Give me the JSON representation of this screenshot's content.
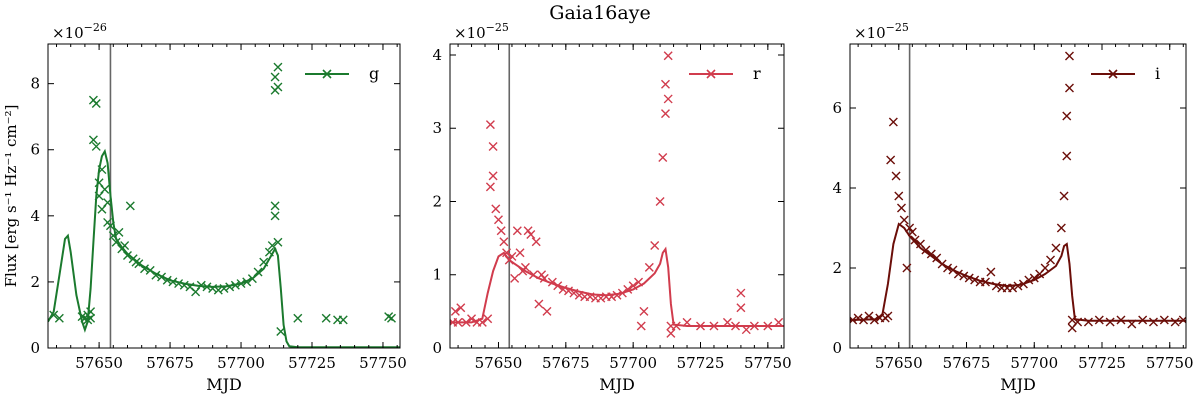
{
  "figure": {
    "title": "Gaia16aye"
  },
  "chart_data": [
    {
      "type": "scatter",
      "band": "g",
      "color": "#1b7a2e",
      "xlabel": "MJD",
      "ylabel": "Flux [erg s⁻¹ Hz⁻¹ cm⁻²]",
      "scale_text": "×10",
      "scale_exp": "−26",
      "xlim": [
        57632,
        57756
      ],
      "ylim": [
        0,
        9.2
      ],
      "xticks": [
        57650,
        57675,
        57700,
        57725,
        57750
      ],
      "yticks": [
        0,
        2,
        4,
        6,
        8
      ],
      "vline": 57654,
      "legend": "g",
      "legend_position": "top-right",
      "points": [
        [
          57634,
          1.0
        ],
        [
          57636,
          0.9
        ],
        [
          57644,
          0.95
        ],
        [
          57645,
          0.9
        ],
        [
          57646,
          1.0
        ],
        [
          57646,
          0.85
        ],
        [
          57647,
          1.1
        ],
        [
          57647,
          0.9
        ],
        [
          57648,
          6.3
        ],
        [
          57648,
          7.5
        ],
        [
          57649,
          7.4
        ],
        [
          57649,
          6.1
        ],
        [
          57650,
          5.0
        ],
        [
          57650,
          4.6
        ],
        [
          57651,
          5.4
        ],
        [
          57651,
          4.2
        ],
        [
          57652,
          4.8
        ],
        [
          57653,
          4.4
        ],
        [
          57653,
          3.8
        ],
        [
          57654,
          3.7
        ],
        [
          57655,
          3.4
        ],
        [
          57656,
          3.2
        ],
        [
          57657,
          3.5
        ],
        [
          57658,
          3.0
        ],
        [
          57659,
          3.1
        ],
        [
          57660,
          2.8
        ],
        [
          57661,
          4.3
        ],
        [
          57662,
          2.7
        ],
        [
          57663,
          2.6
        ],
        [
          57664,
          2.55
        ],
        [
          57666,
          2.4
        ],
        [
          57668,
          2.35
        ],
        [
          57670,
          2.2
        ],
        [
          57672,
          2.15
        ],
        [
          57674,
          2.05
        ],
        [
          57676,
          2.0
        ],
        [
          57678,
          1.95
        ],
        [
          57680,
          1.9
        ],
        [
          57682,
          1.85
        ],
        [
          57684,
          1.7
        ],
        [
          57686,
          1.9
        ],
        [
          57688,
          1.85
        ],
        [
          57690,
          1.8
        ],
        [
          57692,
          1.75
        ],
        [
          57694,
          1.8
        ],
        [
          57696,
          1.85
        ],
        [
          57698,
          1.9
        ],
        [
          57700,
          1.95
        ],
        [
          57702,
          2.0
        ],
        [
          57704,
          2.1
        ],
        [
          57706,
          2.3
        ],
        [
          57708,
          2.6
        ],
        [
          57710,
          2.9
        ],
        [
          57711,
          3.1
        ],
        [
          57712,
          4.0
        ],
        [
          57712,
          4.3
        ],
        [
          57712,
          7.8
        ],
        [
          57712,
          8.2
        ],
        [
          57713,
          7.9
        ],
        [
          57713,
          8.5
        ],
        [
          57713,
          3.2
        ],
        [
          57714,
          0.5
        ],
        [
          57720,
          0.9
        ],
        [
          57730,
          0.9
        ],
        [
          57734,
          0.85
        ],
        [
          57736,
          0.85
        ],
        [
          57752,
          0.95
        ],
        [
          57753,
          0.9
        ]
      ],
      "model_curve": [
        [
          57632,
          0.8
        ],
        [
          57634,
          1.1
        ],
        [
          57636,
          2.2
        ],
        [
          57638,
          3.3
        ],
        [
          57639,
          3.4
        ],
        [
          57640,
          2.9
        ],
        [
          57642,
          1.6
        ],
        [
          57644,
          0.8
        ],
        [
          57645,
          0.55
        ],
        [
          57646,
          0.8
        ],
        [
          57647,
          1.8
        ],
        [
          57648,
          3.2
        ],
        [
          57649,
          4.6
        ],
        [
          57650,
          5.4
        ],
        [
          57651,
          5.8
        ],
        [
          57652,
          5.95
        ],
        [
          57653,
          5.6
        ],
        [
          57654,
          4.6
        ],
        [
          57655,
          3.8
        ],
        [
          57656,
          3.3
        ],
        [
          57658,
          3.05
        ],
        [
          57660,
          2.85
        ],
        [
          57665,
          2.5
        ],
        [
          57670,
          2.25
        ],
        [
          57675,
          2.05
        ],
        [
          57680,
          1.95
        ],
        [
          57685,
          1.88
        ],
        [
          57690,
          1.85
        ],
        [
          57695,
          1.87
        ],
        [
          57700,
          1.95
        ],
        [
          57704,
          2.1
        ],
        [
          57708,
          2.4
        ],
        [
          57710,
          2.7
        ],
        [
          57712,
          3.0
        ],
        [
          57713,
          2.8
        ],
        [
          57714,
          1.8
        ],
        [
          57715,
          0.7
        ],
        [
          57716,
          0.2
        ],
        [
          57717,
          0.05
        ],
        [
          57720,
          0.02
        ],
        [
          57740,
          0.02
        ],
        [
          57756,
          0.02
        ]
      ]
    },
    {
      "type": "scatter",
      "band": "r",
      "color": "#d13c4d",
      "xlabel": "MJD",
      "ylabel": "",
      "scale_text": "×10",
      "scale_exp": "−25",
      "xlim": [
        57632,
        57756
      ],
      "ylim": [
        0,
        4.15
      ],
      "xticks": [
        57650,
        57675,
        57700,
        57725,
        57750
      ],
      "yticks": [
        0,
        1,
        2,
        3,
        4
      ],
      "vline": 57654,
      "legend": "r",
      "legend_position": "top-right",
      "points": [
        [
          57633,
          0.35
        ],
        [
          57634,
          0.5
        ],
        [
          57635,
          0.35
        ],
        [
          57636,
          0.55
        ],
        [
          57638,
          0.35
        ],
        [
          57640,
          0.4
        ],
        [
          57642,
          0.35
        ],
        [
          57644,
          0.35
        ],
        [
          57646,
          0.4
        ],
        [
          57647,
          2.2
        ],
        [
          57647,
          3.05
        ],
        [
          57648,
          2.75
        ],
        [
          57648,
          2.35
        ],
        [
          57649,
          1.9
        ],
        [
          57650,
          1.75
        ],
        [
          57651,
          1.6
        ],
        [
          57652,
          1.45
        ],
        [
          57653,
          1.3
        ],
        [
          57654,
          1.2
        ],
        [
          57655,
          1.25
        ],
        [
          57656,
          0.95
        ],
        [
          57657,
          1.6
        ],
        [
          57658,
          1.3
        ],
        [
          57659,
          1.05
        ],
        [
          57660,
          1.1
        ],
        [
          57661,
          1.6
        ],
        [
          57662,
          1.55
        ],
        [
          57663,
          1.0
        ],
        [
          57664,
          1.45
        ],
        [
          57665,
          0.6
        ],
        [
          57666,
          1.0
        ],
        [
          57667,
          0.95
        ],
        [
          57668,
          0.5
        ],
        [
          57670,
          0.9
        ],
        [
          57672,
          0.85
        ],
        [
          57674,
          0.8
        ],
        [
          57676,
          0.78
        ],
        [
          57678,
          0.75
        ],
        [
          57680,
          0.72
        ],
        [
          57682,
          0.7
        ],
        [
          57684,
          0.7
        ],
        [
          57686,
          0.68
        ],
        [
          57688,
          0.68
        ],
        [
          57690,
          0.7
        ],
        [
          57692,
          0.7
        ],
        [
          57694,
          0.72
        ],
        [
          57696,
          0.75
        ],
        [
          57698,
          0.8
        ],
        [
          57700,
          0.85
        ],
        [
          57702,
          0.9
        ],
        [
          57703,
          0.3
        ],
        [
          57704,
          0.5
        ],
        [
          57706,
          1.1
        ],
        [
          57708,
          1.4
        ],
        [
          57710,
          2.0
        ],
        [
          57711,
          2.6
        ],
        [
          57712,
          3.2
        ],
        [
          57712,
          3.6
        ],
        [
          57713,
          3.99
        ],
        [
          57713,
          3.4
        ],
        [
          57714,
          0.2
        ],
        [
          57714,
          0.3
        ],
        [
          57716,
          0.3
        ],
        [
          57720,
          0.35
        ],
        [
          57725,
          0.3
        ],
        [
          57730,
          0.3
        ],
        [
          57735,
          0.35
        ],
        [
          57738,
          0.3
        ],
        [
          57740,
          0.75
        ],
        [
          57740,
          0.55
        ],
        [
          57742,
          0.25
        ],
        [
          57745,
          0.3
        ],
        [
          57750,
          0.3
        ],
        [
          57754,
          0.35
        ]
      ],
      "model_curve": [
        [
          57632,
          0.35
        ],
        [
          57640,
          0.35
        ],
        [
          57644,
          0.4
        ],
        [
          57646,
          0.75
        ],
        [
          57648,
          1.05
        ],
        [
          57650,
          1.25
        ],
        [
          57652,
          1.3
        ],
        [
          57654,
          1.2
        ],
        [
          57656,
          1.15
        ],
        [
          57660,
          1.05
        ],
        [
          57665,
          0.95
        ],
        [
          57670,
          0.88
        ],
        [
          57675,
          0.82
        ],
        [
          57680,
          0.77
        ],
        [
          57685,
          0.73
        ],
        [
          57690,
          0.72
        ],
        [
          57695,
          0.74
        ],
        [
          57700,
          0.8
        ],
        [
          57704,
          0.88
        ],
        [
          57708,
          1.02
        ],
        [
          57710,
          1.15
        ],
        [
          57711,
          1.3
        ],
        [
          57712,
          1.35
        ],
        [
          57713,
          1.1
        ],
        [
          57714,
          0.6
        ],
        [
          57715,
          0.32
        ],
        [
          57720,
          0.3
        ],
        [
          57756,
          0.3
        ]
      ]
    },
    {
      "type": "scatter",
      "band": "i",
      "color": "#6b0e09",
      "xlabel": "MJD",
      "ylabel": "",
      "scale_text": "×10",
      "scale_exp": "−25",
      "xlim": [
        57632,
        57756
      ],
      "ylim": [
        0,
        7.6
      ],
      "xticks": [
        57650,
        57675,
        57700,
        57725,
        57750
      ],
      "yticks": [
        0,
        2,
        4,
        6
      ],
      "vline": 57654,
      "legend": "i",
      "legend_position": "top-right",
      "points": [
        [
          57633,
          0.7
        ],
        [
          57635,
          0.75
        ],
        [
          57637,
          0.7
        ],
        [
          57639,
          0.8
        ],
        [
          57641,
          0.7
        ],
        [
          57643,
          0.75
        ],
        [
          57645,
          0.75
        ],
        [
          57646,
          0.8
        ],
        [
          57647,
          4.7
        ],
        [
          57648,
          5.65
        ],
        [
          57649,
          4.3
        ],
        [
          57650,
          3.8
        ],
        [
          57651,
          3.5
        ],
        [
          57652,
          3.2
        ],
        [
          57653,
          2.0
        ],
        [
          57654,
          3.0
        ],
        [
          57655,
          2.9
        ],
        [
          57656,
          2.7
        ],
        [
          57658,
          2.6
        ],
        [
          57660,
          2.45
        ],
        [
          57662,
          2.35
        ],
        [
          57664,
          2.25
        ],
        [
          57666,
          2.1
        ],
        [
          57668,
          2.0
        ],
        [
          57670,
          1.95
        ],
        [
          57672,
          1.85
        ],
        [
          57674,
          1.8
        ],
        [
          57676,
          1.75
        ],
        [
          57678,
          1.7
        ],
        [
          57680,
          1.65
        ],
        [
          57682,
          1.65
        ],
        [
          57684,
          1.9
        ],
        [
          57686,
          1.55
        ],
        [
          57688,
          1.5
        ],
        [
          57690,
          1.5
        ],
        [
          57692,
          1.5
        ],
        [
          57694,
          1.55
        ],
        [
          57696,
          1.6
        ],
        [
          57698,
          1.7
        ],
        [
          57700,
          1.75
        ],
        [
          57702,
          1.85
        ],
        [
          57704,
          2.0
        ],
        [
          57706,
          2.2
        ],
        [
          57708,
          2.5
        ],
        [
          57710,
          3.0
        ],
        [
          57711,
          3.8
        ],
        [
          57712,
          4.8
        ],
        [
          57712,
          5.8
        ],
        [
          57713,
          6.5
        ],
        [
          57713,
          7.3
        ],
        [
          57714,
          0.5
        ],
        [
          57714,
          0.7
        ],
        [
          57716,
          0.65
        ],
        [
          57720,
          0.65
        ],
        [
          57724,
          0.7
        ],
        [
          57728,
          0.65
        ],
        [
          57732,
          0.7
        ],
        [
          57736,
          0.6
        ],
        [
          57740,
          0.7
        ],
        [
          57744,
          0.65
        ],
        [
          57748,
          0.7
        ],
        [
          57752,
          0.65
        ],
        [
          57755,
          0.7
        ]
      ],
      "model_curve": [
        [
          57632,
          0.7
        ],
        [
          57642,
          0.72
        ],
        [
          57644,
          0.85
        ],
        [
          57646,
          1.6
        ],
        [
          57648,
          2.6
        ],
        [
          57650,
          3.1
        ],
        [
          57652,
          3.0
        ],
        [
          57654,
          2.8
        ],
        [
          57658,
          2.5
        ],
        [
          57662,
          2.3
        ],
        [
          57666,
          2.1
        ],
        [
          57670,
          1.95
        ],
        [
          57675,
          1.8
        ],
        [
          57680,
          1.68
        ],
        [
          57685,
          1.6
        ],
        [
          57690,
          1.55
        ],
        [
          57695,
          1.58
        ],
        [
          57700,
          1.7
        ],
        [
          57704,
          1.85
        ],
        [
          57708,
          2.05
        ],
        [
          57710,
          2.3
        ],
        [
          57711,
          2.55
        ],
        [
          57712,
          2.6
        ],
        [
          57713,
          2.1
        ],
        [
          57714,
          1.3
        ],
        [
          57715,
          0.72
        ],
        [
          57720,
          0.68
        ],
        [
          57756,
          0.68
        ]
      ]
    }
  ]
}
